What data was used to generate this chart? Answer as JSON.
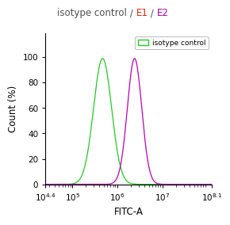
{
  "title_parts": [
    {
      "text": "isotype control",
      "color": "#505050"
    },
    {
      "text": " / ",
      "color": "#505050"
    },
    {
      "text": "E1",
      "color": "#dd2200"
    },
    {
      "text": " / ",
      "color": "#505050"
    },
    {
      "text": "E2",
      "color": "#aa00aa"
    }
  ],
  "xlabel": "FITC-A",
  "ylabel": "Count (%)",
  "xmin_exp": 4.4,
  "xmax_exp": 8.1,
  "ymin": 0,
  "ymax": 119,
  "yticks": [
    0,
    20,
    40,
    60,
    80,
    100
  ],
  "xtick_exps": [
    4.4,
    5,
    6,
    7,
    8.1
  ],
  "xtick_labels": [
    "$10^{4.4}$",
    "$10^{5}$",
    "$10^{6}$",
    "$10^{7}$",
    "$10^{8.1}$"
  ],
  "curve_green": {
    "peak_x_log": 5.67,
    "peak_y": 99,
    "sigma": 0.2,
    "color": "#22cc22"
  },
  "curve_magenta": {
    "peak_x_log": 6.38,
    "peak_y": 99,
    "sigma": 0.16,
    "color": "#bb00bb"
  },
  "legend_label": "isotype control",
  "legend_color": "#22cc22",
  "background_color": "#ffffff",
  "title_fontsize": 8.5,
  "axis_fontsize": 8.5,
  "tick_fontsize": 7.5
}
